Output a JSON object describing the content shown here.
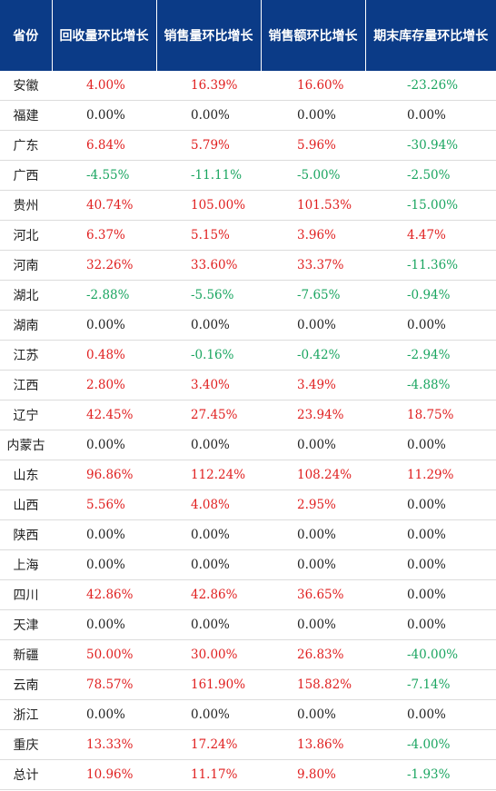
{
  "headers": [
    "省份",
    "回收量环比增长",
    "销售量环比增长",
    "销售额环比增长",
    "期末库存量环比增长"
  ],
  "rows": [
    {
      "province": "安徽",
      "values": [
        "4.00%",
        "16.39%",
        "16.60%",
        "-23.26%"
      ]
    },
    {
      "province": "福建",
      "values": [
        "0.00%",
        "0.00%",
        "0.00%",
        "0.00%"
      ]
    },
    {
      "province": "广东",
      "values": [
        "6.84%",
        "5.79%",
        "5.96%",
        "-30.94%"
      ]
    },
    {
      "province": "广西",
      "values": [
        "-4.55%",
        "-11.11%",
        "-5.00%",
        "-2.50%"
      ]
    },
    {
      "province": "贵州",
      "values": [
        "40.74%",
        "105.00%",
        "101.53%",
        "-15.00%"
      ]
    },
    {
      "province": "河北",
      "values": [
        "6.37%",
        "5.15%",
        "3.96%",
        "4.47%"
      ]
    },
    {
      "province": "河南",
      "values": [
        "32.26%",
        "33.60%",
        "33.37%",
        "-11.36%"
      ]
    },
    {
      "province": "湖北",
      "values": [
        "-2.88%",
        "-5.56%",
        "-7.65%",
        "-0.94%"
      ]
    },
    {
      "province": "湖南",
      "values": [
        "0.00%",
        "0.00%",
        "0.00%",
        "0.00%"
      ]
    },
    {
      "province": "江苏",
      "values": [
        "0.48%",
        "-0.16%",
        "-0.42%",
        "-2.94%"
      ]
    },
    {
      "province": "江西",
      "values": [
        "2.80%",
        "3.40%",
        "3.49%",
        "-4.88%"
      ]
    },
    {
      "province": "辽宁",
      "values": [
        "42.45%",
        "27.45%",
        "23.94%",
        "18.75%"
      ]
    },
    {
      "province": "内蒙古",
      "values": [
        "0.00%",
        "0.00%",
        "0.00%",
        "0.00%"
      ]
    },
    {
      "province": "山东",
      "values": [
        "96.86%",
        "112.24%",
        "108.24%",
        "11.29%"
      ]
    },
    {
      "province": "山西",
      "values": [
        "5.56%",
        "4.08%",
        "2.95%",
        "0.00%"
      ]
    },
    {
      "province": "陕西",
      "values": [
        "0.00%",
        "0.00%",
        "0.00%",
        "0.00%"
      ]
    },
    {
      "province": "上海",
      "values": [
        "0.00%",
        "0.00%",
        "0.00%",
        "0.00%"
      ]
    },
    {
      "province": "四川",
      "values": [
        "42.86%",
        "42.86%",
        "36.65%",
        "0.00%"
      ]
    },
    {
      "province": "天津",
      "values": [
        "0.00%",
        "0.00%",
        "0.00%",
        "0.00%"
      ]
    },
    {
      "province": "新疆",
      "values": [
        "50.00%",
        "30.00%",
        "26.83%",
        "-40.00%"
      ]
    },
    {
      "province": "云南",
      "values": [
        "78.57%",
        "161.90%",
        "158.82%",
        "-7.14%"
      ]
    },
    {
      "province": "浙江",
      "values": [
        "0.00%",
        "0.00%",
        "0.00%",
        "0.00%"
      ]
    },
    {
      "province": "重庆",
      "values": [
        "13.33%",
        "17.24%",
        "13.86%",
        "-4.00%"
      ]
    },
    {
      "province": "总计",
      "values": [
        "10.96%",
        "11.17%",
        "9.80%",
        "-1.93%"
      ]
    }
  ],
  "colors": {
    "header_bg": "#0b3b87",
    "header_text": "#ffffff",
    "positive": "#e02020",
    "negative": "#1aa560",
    "zero": "#222222"
  }
}
